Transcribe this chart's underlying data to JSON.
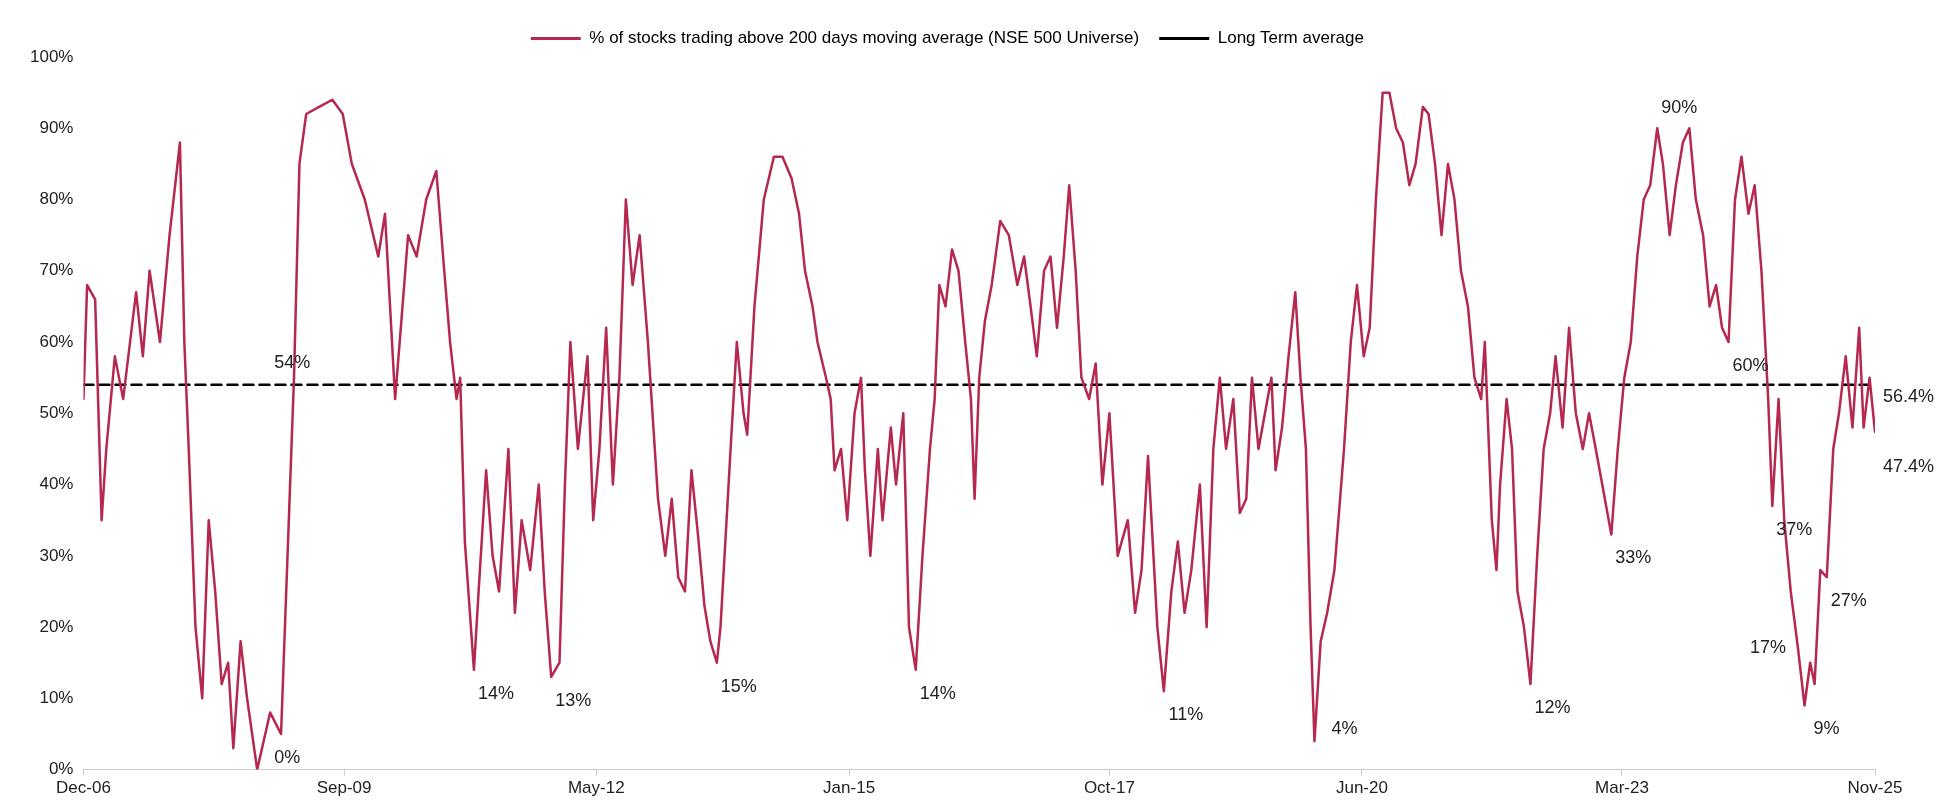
{
  "chart_data": {
    "type": "line",
    "legend": "top",
    "marker": "none",
    "xlim": [
      "2006-12-01",
      "2025-11-01"
    ],
    "xticks": [
      {
        "value": "2006-12-01",
        "label": "Dec-06"
      },
      {
        "value": "2009-09-01",
        "label": "Sep-09"
      },
      {
        "value": "2012-05-01",
        "label": "May-12"
      },
      {
        "value": "2015-01-01",
        "label": "Jan-15"
      },
      {
        "value": "2017-10-01",
        "label": "Oct-17"
      },
      {
        "value": "2020-06-01",
        "label": "Jun-20"
      },
      {
        "value": "2023-03-01",
        "label": "Mar-23"
      },
      {
        "value": "2025-11-01",
        "label": "Nov-25"
      }
    ],
    "ylim": [
      0,
      100
    ],
    "yticks": [
      {
        "value": 0,
        "label": "0%"
      },
      {
        "value": 10,
        "label": "10%"
      },
      {
        "value": 20,
        "label": "20%"
      },
      {
        "value": 30,
        "label": "30%"
      },
      {
        "value": 40,
        "label": "40%"
      },
      {
        "value": 50,
        "label": "50%"
      },
      {
        "value": 60,
        "label": "60%"
      },
      {
        "value": 70,
        "label": "70%"
      },
      {
        "value": 80,
        "label": "80%"
      },
      {
        "value": 90,
        "label": "90%"
      },
      {
        "value": 100,
        "label": "100%"
      }
    ],
    "series": [
      {
        "name": "% of stocks trading above 200 days moving average (NSE 500 Universe)",
        "color": "#b5284f",
        "line_style": "solid",
        "x": [
          "2006-12-01",
          "2006-12-15",
          "2007-01-15",
          "2007-02-09",
          "2007-02-27",
          "2007-04-01",
          "2007-05-03",
          "2007-06-22",
          "2007-07-18",
          "2007-08-13",
          "2007-09-22",
          "2007-10-29",
          "2007-12-08",
          "2007-12-25",
          "2008-01-11",
          "2008-02-06",
          "2008-03-03",
          "2008-03-28",
          "2008-04-22",
          "2008-05-17",
          "2008-06-11",
          "2008-07-01",
          "2008-07-29",
          "2008-08-23",
          "2008-10-01",
          "2008-11-20",
          "2009-01-01",
          "2009-02-20",
          "2009-03-13",
          "2009-04-08",
          "2009-05-28",
          "2009-07-18",
          "2009-08-27",
          "2009-10-01",
          "2009-11-20",
          "2010-01-11",
          "2010-02-06",
          "2010-03-17",
          "2010-04-08",
          "2010-05-06",
          "2010-06-08",
          "2010-07-15",
          "2010-08-23",
          "2010-09-18",
          "2010-10-15",
          "2010-11-09",
          "2010-11-23",
          "2010-12-11",
          "2011-01-15",
          "2011-02-02",
          "2011-03-03",
          "2011-03-28",
          "2011-04-22",
          "2011-05-28",
          "2011-06-22",
          "2011-07-18",
          "2011-08-20",
          "2011-09-22",
          "2011-10-15",
          "2011-11-09",
          "2011-12-11",
          "2012-01-01",
          "2012-01-22",
          "2012-02-20",
          "2012-03-28",
          "2012-04-19",
          "2012-05-13",
          "2012-06-08",
          "2012-07-04",
          "2012-07-29",
          "2012-08-23",
          "2012-09-18",
          "2012-10-15",
          "2012-11-16",
          "2012-12-25",
          "2013-01-22",
          "2013-02-16",
          "2013-03-13",
          "2013-04-08",
          "2013-05-03",
          "2013-05-28",
          "2013-06-22",
          "2013-07-15",
          "2013-08-09",
          "2013-08-23",
          "2013-10-01",
          "2013-10-25",
          "2013-11-20",
          "2013-12-04",
          "2014-01-01",
          "2014-02-06",
          "2014-03-17",
          "2014-04-19",
          "2014-05-24",
          "2014-06-22",
          "2014-07-15",
          "2014-08-13",
          "2014-09-01",
          "2014-10-04",
          "2014-10-22",
          "2014-11-06",
          "2014-12-01",
          "2014-12-25",
          "2015-01-22",
          "2015-02-16",
          "2015-03-03",
          "2015-03-24",
          "2015-04-22",
          "2015-05-10",
          "2015-06-11",
          "2015-07-01",
          "2015-07-29",
          "2015-08-20",
          "2015-09-15",
          "2015-10-11",
          "2015-11-09",
          "2015-11-27",
          "2015-12-15",
          "2016-01-08",
          "2016-02-02",
          "2016-02-27",
          "2016-03-24",
          "2016-04-15",
          "2016-04-29",
          "2016-05-17",
          "2016-06-08",
          "2016-07-04",
          "2016-08-06",
          "2016-09-08",
          "2016-10-11",
          "2016-11-06",
          "2016-12-01",
          "2016-12-25",
          "2017-01-22",
          "2017-02-16",
          "2017-03-13",
          "2017-04-08",
          "2017-04-29",
          "2017-05-24",
          "2017-06-15",
          "2017-07-15",
          "2017-08-09",
          "2017-09-04",
          "2017-10-01",
          "2017-11-02",
          "2017-12-11",
          "2018-01-08",
          "2018-02-02",
          "2018-02-27",
          "2018-04-04",
          "2018-04-29",
          "2018-05-28",
          "2018-06-22",
          "2018-07-18",
          "2018-08-13",
          "2018-09-15",
          "2018-10-11",
          "2018-11-06",
          "2018-12-01",
          "2018-12-25",
          "2019-01-22",
          "2019-02-16",
          "2019-03-13",
          "2019-04-04",
          "2019-04-29",
          "2019-05-24",
          "2019-06-18",
          "2019-07-04",
          "2019-07-29",
          "2019-08-23",
          "2019-09-18",
          "2019-10-08",
          "2019-10-29",
          "2019-11-16",
          "2019-12-01",
          "2019-12-25",
          "2020-01-19",
          "2020-02-16",
          "2020-03-24",
          "2020-04-19",
          "2020-05-13",
          "2020-06-08",
          "2020-07-01",
          "2020-07-25",
          "2020-08-20",
          "2020-09-15",
          "2020-10-11",
          "2020-11-06",
          "2020-12-01",
          "2020-12-25",
          "2021-01-22",
          "2021-02-13",
          "2021-03-10",
          "2021-04-04",
          "2021-04-29",
          "2021-05-24",
          "2021-06-18",
          "2021-07-15",
          "2021-08-09",
          "2021-09-04",
          "2021-09-18",
          "2021-10-15",
          "2021-11-02",
          "2021-11-16",
          "2021-12-11",
          "2022-01-01",
          "2022-01-22",
          "2022-02-16",
          "2022-03-13",
          "2022-04-08",
          "2022-05-03",
          "2022-05-28",
          "2022-06-18",
          "2022-07-15",
          "2022-08-09",
          "2022-09-04",
          "2022-10-01",
          "2022-10-25",
          "2022-11-20",
          "2022-12-15",
          "2023-01-19",
          "2023-02-13",
          "2023-03-10",
          "2023-04-04",
          "2023-04-29",
          "2023-05-24",
          "2023-06-18",
          "2023-07-15",
          "2023-08-06",
          "2023-09-01",
          "2023-09-25",
          "2023-10-22",
          "2023-11-16",
          "2023-12-11",
          "2024-01-08",
          "2024-02-02",
          "2024-02-27",
          "2024-03-21",
          "2024-04-15",
          "2024-05-10",
          "2024-06-04",
          "2024-07-01",
          "2024-07-25",
          "2024-08-20",
          "2024-09-15",
          "2024-10-01",
          "2024-10-25",
          "2024-11-16",
          "2024-12-11",
          "2025-01-08",
          "2025-02-02",
          "2025-02-24",
          "2025-03-13",
          "2025-04-04",
          "2025-04-29",
          "2025-05-24",
          "2025-06-15",
          "2025-07-11",
          "2025-08-06",
          "2025-09-01",
          "2025-09-18",
          "2025-10-11",
          "2025-11-01"
        ],
        "values": [
          52,
          68,
          66,
          35,
          45,
          58,
          52,
          67,
          58,
          70,
          60,
          75,
          88,
          60,
          45,
          20,
          10,
          35,
          25,
          12,
          15,
          3,
          18,
          10,
          0,
          8,
          5,
          55,
          85,
          92,
          93,
          94,
          92,
          85,
          80,
          72,
          78,
          52,
          62,
          75,
          72,
          80,
          84,
          72,
          60,
          52,
          55,
          32,
          14,
          25,
          42,
          30,
          25,
          45,
          22,
          35,
          28,
          40,
          25,
          13,
          15,
          40,
          60,
          45,
          58,
          35,
          45,
          62,
          40,
          55,
          80,
          68,
          75,
          60,
          38,
          30,
          38,
          27,
          25,
          42,
          33,
          23,
          18,
          15,
          20,
          45,
          60,
          50,
          47,
          65,
          80,
          86,
          86,
          83,
          78,
          70,
          65,
          60,
          55,
          52,
          42,
          45,
          35,
          50,
          55,
          42,
          30,
          45,
          35,
          48,
          40,
          50,
          20,
          14,
          30,
          45,
          52,
          68,
          65,
          73,
          70,
          60,
          52,
          38,
          55,
          63,
          68,
          77,
          75,
          68,
          72,
          65,
          58,
          70,
          72,
          62,
          72,
          82,
          70,
          55,
          52,
          57,
          40,
          50,
          30,
          35,
          22,
          28,
          44,
          20,
          11,
          25,
          32,
          22,
          28,
          40,
          20,
          45,
          55,
          45,
          52,
          36,
          38,
          55,
          45,
          50,
          55,
          42,
          48,
          58,
          67,
          55,
          45,
          20,
          4,
          18,
          22,
          28,
          45,
          60,
          68,
          58,
          62,
          80,
          95,
          95,
          90,
          88,
          82,
          85,
          93,
          92,
          85,
          75,
          85,
          80,
          70,
          65,
          55,
          52,
          60,
          35,
          28,
          40,
          52,
          45,
          25,
          20,
          12,
          30,
          45,
          50,
          58,
          48,
          62,
          50,
          45,
          50,
          45,
          40,
          33,
          45,
          55,
          60,
          72,
          80,
          82,
          90,
          85,
          75,
          82,
          88,
          90,
          80,
          75,
          65,
          68,
          62,
          60,
          80,
          86,
          78,
          82,
          70,
          52,
          37,
          52,
          35,
          25,
          17,
          9,
          15,
          12,
          28,
          27,
          45,
          50,
          58,
          48,
          62,
          48,
          55,
          47.4
        ]
      },
      {
        "name": "Long Term average",
        "color": "#000000",
        "line_style": "dashed",
        "x": [
          "2006-12-01",
          "2008-11-20",
          "2025-11-01"
        ],
        "values": [
          54,
          54,
          54
        ]
      }
    ],
    "annotations": [
      {
        "text": "54%",
        "x": "2008-11-20",
        "y": 54
      },
      {
        "text": "0%",
        "x": "2008-10-01",
        "y": 0
      },
      {
        "text": "14%",
        "x": "2011-01-15",
        "y": 14
      },
      {
        "text": "13%",
        "x": "2011-11-09",
        "y": 13
      },
      {
        "text": "15%",
        "x": "2013-08-09",
        "y": 15
      },
      {
        "text": "14%",
        "x": "2015-09-15",
        "y": 14
      },
      {
        "text": "11%",
        "x": "2018-04-29",
        "y": 11
      },
      {
        "text": "4%",
        "x": "2019-12-01",
        "y": 4
      },
      {
        "text": "12%",
        "x": "2022-03-13",
        "y": 12
      },
      {
        "text": "90%",
        "x": "2023-07-15",
        "y": 90
      },
      {
        "text": "33%",
        "x": "2023-01-19",
        "y": 33
      },
      {
        "text": "60%",
        "x": "2024-04-15",
        "y": 60
      },
      {
        "text": "37%",
        "x": "2024-10-01",
        "y": 37
      },
      {
        "text": "17%",
        "x": "2025-01-08",
        "y": 17
      },
      {
        "text": "9%",
        "x": "2025-02-02",
        "y": 9
      },
      {
        "text": "27%",
        "x": "2025-04-29",
        "y": 27
      },
      "56.4%",
      "47.4%"
    ]
  }
}
